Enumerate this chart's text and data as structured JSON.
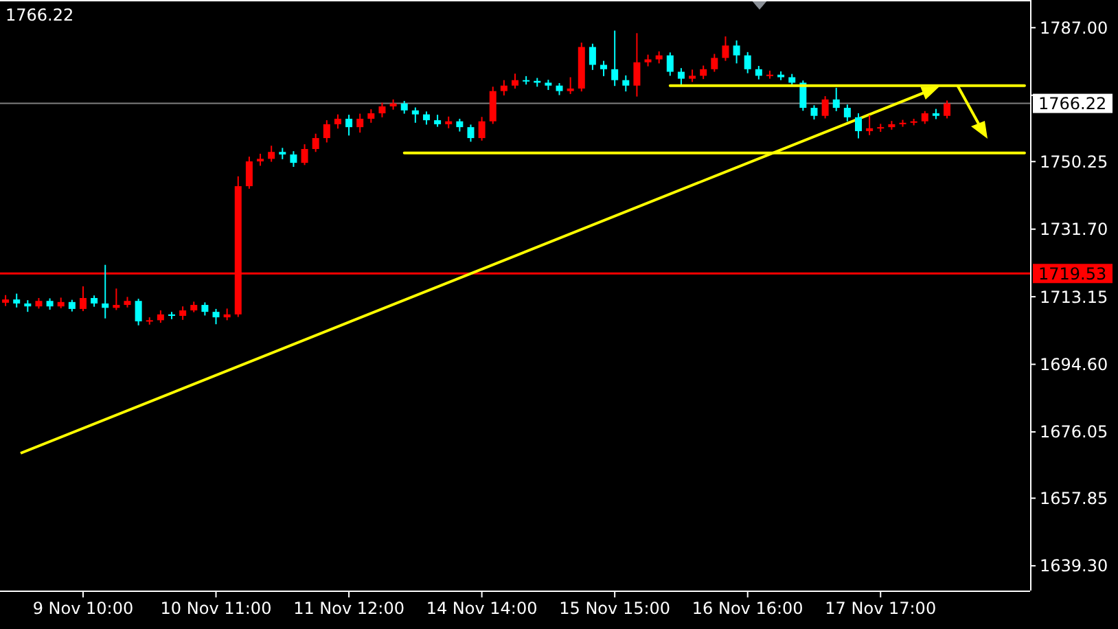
{
  "chart_data": {
    "type": "candlestick",
    "categories": [
      null,
      null,
      null,
      null,
      null,
      null,
      null,
      "9 Nov 10:00",
      null,
      null,
      null,
      null,
      null,
      null,
      null,
      null,
      null,
      null,
      null,
      "10 Nov 11:00",
      null,
      null,
      null,
      null,
      null,
      null,
      null,
      null,
      null,
      null,
      null,
      "11 Nov 12:00",
      null,
      null,
      null,
      null,
      null,
      null,
      null,
      null,
      null,
      null,
      null,
      "14 Nov 14:00",
      null,
      null,
      null,
      null,
      null,
      null,
      null,
      null,
      null,
      null,
      null,
      "15 Nov 15:00",
      null,
      null,
      null,
      null,
      null,
      null,
      null,
      null,
      null,
      null,
      null,
      "16 Nov 16:00",
      null,
      null,
      null,
      null,
      null,
      null,
      null,
      null,
      null,
      null,
      null,
      "17 Nov 17:00",
      null,
      null,
      null,
      null,
      null,
      null,
      null,
      null,
      null,
      null,
      null,
      null,
      null
    ],
    "ohlc": [
      [
        1711.5,
        1713.6,
        1710.6,
        1712.4
      ],
      [
        1712.4,
        1714.0,
        1710.2,
        1711.3
      ],
      [
        1711.3,
        1712.2,
        1709.0,
        1710.5
      ],
      [
        1710.5,
        1712.8,
        1709.9,
        1712.0
      ],
      [
        1712.0,
        1712.7,
        1709.6,
        1710.5
      ],
      [
        1710.5,
        1712.9,
        1710.0,
        1711.7
      ],
      [
        1711.7,
        1712.3,
        1709.1,
        1709.8
      ],
      [
        1709.8,
        1716.0,
        1709.2,
        1712.8
      ],
      [
        1712.8,
        1713.5,
        1710.4,
        1711.3
      ],
      [
        1711.3,
        1721.9,
        1707.2,
        1710.1
      ],
      [
        1710.1,
        1715.4,
        1709.5,
        1710.9
      ],
      [
        1710.9,
        1713.1,
        1710.2,
        1712.0
      ],
      [
        1712.0,
        1712.6,
        1705.3,
        1706.4
      ],
      [
        1706.4,
        1707.5,
        1705.5,
        1706.7
      ],
      [
        1706.7,
        1709.4,
        1706.0,
        1708.3
      ],
      [
        1708.3,
        1709.0,
        1707.0,
        1707.9
      ],
      [
        1707.9,
        1710.5,
        1706.8,
        1709.4
      ],
      [
        1709.4,
        1711.8,
        1708.9,
        1710.9
      ],
      [
        1710.9,
        1711.6,
        1708.0,
        1709.0
      ],
      [
        1709.0,
        1709.8,
        1705.6,
        1707.5
      ],
      [
        1707.5,
        1709.9,
        1706.7,
        1708.3
      ],
      [
        1708.3,
        1746.2,
        1707.6,
        1743.5
      ],
      [
        1743.5,
        1751.6,
        1742.8,
        1750.3
      ],
      [
        1750.3,
        1752.4,
        1749.1,
        1751.0
      ],
      [
        1751.0,
        1754.6,
        1750.2,
        1752.9
      ],
      [
        1752.9,
        1754.0,
        1750.9,
        1752.2
      ],
      [
        1752.2,
        1753.1,
        1748.8,
        1749.9
      ],
      [
        1749.9,
        1755.0,
        1749.3,
        1753.7
      ],
      [
        1753.7,
        1757.9,
        1752.9,
        1756.7
      ],
      [
        1756.7,
        1761.6,
        1755.5,
        1760.5
      ],
      [
        1760.5,
        1763.2,
        1759.3,
        1762.0
      ],
      [
        1762.0,
        1763.1,
        1757.4,
        1759.7
      ],
      [
        1759.7,
        1763.4,
        1758.2,
        1762.0
      ],
      [
        1762.0,
        1764.6,
        1760.9,
        1763.5
      ],
      [
        1763.5,
        1766.4,
        1762.4,
        1765.4
      ],
      [
        1765.4,
        1767.3,
        1764.5,
        1766.2
      ],
      [
        1766.2,
        1766.9,
        1763.4,
        1764.3
      ],
      [
        1764.3,
        1765.1,
        1760.9,
        1763.2
      ],
      [
        1763.2,
        1764.0,
        1760.4,
        1761.6
      ],
      [
        1761.6,
        1763.1,
        1759.8,
        1760.5
      ],
      [
        1760.5,
        1762.6,
        1759.4,
        1761.3
      ],
      [
        1761.3,
        1762.0,
        1758.5,
        1759.7
      ],
      [
        1759.7,
        1760.4,
        1755.7,
        1756.7
      ],
      [
        1756.7,
        1762.5,
        1756.0,
        1761.3
      ],
      [
        1761.3,
        1770.8,
        1760.6,
        1769.6
      ],
      [
        1769.6,
        1772.6,
        1768.4,
        1771.1
      ],
      [
        1771.1,
        1774.4,
        1770.3,
        1772.6
      ],
      [
        1772.6,
        1773.7,
        1771.4,
        1772.4
      ],
      [
        1772.4,
        1773.2,
        1770.8,
        1771.9
      ],
      [
        1771.9,
        1772.7,
        1769.9,
        1771.1
      ],
      [
        1771.1,
        1771.8,
        1768.5,
        1769.6
      ],
      [
        1769.6,
        1773.4,
        1768.8,
        1770.3
      ],
      [
        1770.3,
        1782.9,
        1769.5,
        1781.7
      ],
      [
        1781.7,
        1782.6,
        1775.4,
        1776.8
      ],
      [
        1776.8,
        1777.9,
        1773.7,
        1775.6
      ],
      [
        1775.6,
        1786.2,
        1771.0,
        1772.6
      ],
      [
        1772.6,
        1773.9,
        1769.5,
        1771.1
      ],
      [
        1771.1,
        1785.5,
        1768.1,
        1777.5
      ],
      [
        1777.5,
        1779.6,
        1776.4,
        1778.3
      ],
      [
        1778.3,
        1780.5,
        1777.2,
        1779.4
      ],
      [
        1779.4,
        1780.2,
        1773.8,
        1774.9
      ],
      [
        1774.9,
        1775.9,
        1771.3,
        1773.0
      ],
      [
        1773.0,
        1775.5,
        1772.1,
        1773.8
      ],
      [
        1773.8,
        1776.6,
        1772.9,
        1775.6
      ],
      [
        1775.6,
        1779.8,
        1774.9,
        1778.7
      ],
      [
        1778.7,
        1784.6,
        1777.9,
        1782.1
      ],
      [
        1782.1,
        1783.5,
        1777.2,
        1779.4
      ],
      [
        1779.4,
        1780.3,
        1774.5,
        1775.6
      ],
      [
        1775.6,
        1776.5,
        1772.8,
        1773.8
      ],
      [
        1773.8,
        1775.2,
        1773.0,
        1774.1
      ],
      [
        1774.1,
        1775.0,
        1772.6,
        1773.4
      ],
      [
        1773.4,
        1774.3,
        1770.9,
        1771.9
      ],
      [
        1771.9,
        1772.5,
        1764.2,
        1765.0
      ],
      [
        1765.0,
        1765.7,
        1761.8,
        1762.8
      ],
      [
        1762.8,
        1768.2,
        1762.1,
        1767.3
      ],
      [
        1767.3,
        1770.5,
        1764.1,
        1765.0
      ],
      [
        1765.0,
        1765.9,
        1761.3,
        1762.4
      ],
      [
        1762.4,
        1763.5,
        1756.6,
        1758.6
      ],
      [
        1758.6,
        1763.0,
        1757.5,
        1759.4
      ],
      [
        1759.4,
        1760.6,
        1758.4,
        1759.7
      ],
      [
        1759.7,
        1761.4,
        1759.0,
        1760.5
      ],
      [
        1760.5,
        1761.7,
        1759.8,
        1760.9
      ],
      [
        1760.9,
        1762.0,
        1760.2,
        1761.3
      ],
      [
        1761.3,
        1764.1,
        1760.6,
        1763.5
      ],
      [
        1763.5,
        1764.7,
        1761.9,
        1762.8
      ],
      [
        1762.8,
        1767.0,
        1762.1,
        1766.2
      ],
      null,
      null,
      null,
      null,
      null,
      null,
      null
    ],
    "colors": [
      "#ff0000",
      "#00ffff",
      "#00ffff",
      "#ff0000",
      "#00ffff",
      "#ff0000",
      "#00ffff",
      "#ff0000",
      "#00ffff",
      "#00ffff",
      "#ff0000",
      "#ff0000",
      "#00ffff",
      "#ff0000",
      "#ff0000",
      "#00ffff",
      "#ff0000",
      "#ff0000",
      "#00ffff",
      "#00ffff",
      "#ff0000",
      "#ff0000",
      "#ff0000",
      "#ff0000",
      "#ff0000",
      "#00ffff",
      "#00ffff",
      "#ff0000",
      "#ff0000",
      "#ff0000",
      "#ff0000",
      "#00ffff",
      "#ff0000",
      "#ff0000",
      "#ff0000",
      "#ff0000",
      "#00ffff",
      "#00ffff",
      "#00ffff",
      "#00ffff",
      "#ff0000",
      "#00ffff",
      "#00ffff",
      "#ff0000",
      "#ff0000",
      "#ff0000",
      "#ff0000",
      "#00ffff",
      "#00ffff",
      "#00ffff",
      "#00ffff",
      "#ff0000",
      "#ff0000",
      "#00ffff",
      "#00ffff",
      "#00ffff",
      "#00ffff",
      "#ff0000",
      "#ff0000",
      "#ff0000",
      "#00ffff",
      "#00ffff",
      "#ff0000",
      "#ff0000",
      "#ff0000",
      "#ff0000",
      "#00ffff",
      "#00ffff",
      "#00ffff",
      "#ff0000",
      "#00ffff",
      "#00ffff",
      "#00ffff",
      "#00ffff",
      "#ff0000",
      "#00ffff",
      "#00ffff",
      "#00ffff",
      "#ff0000",
      "#ff0000",
      "#ff0000",
      "#ff0000",
      "#ff0000",
      "#ff0000",
      "#00ffff",
      "#ff0000",
      null,
      null,
      null,
      null,
      null,
      null,
      null
    ],
    "series": [
      {
        "type": "line",
        "color": "#ffff00",
        "values": [
          null,
          null,
          null,
          null,
          null,
          null,
          null,
          null,
          null,
          null,
          null,
          null,
          null,
          null,
          null,
          null,
          null,
          null,
          null,
          null,
          null,
          null,
          null,
          null,
          null,
          null,
          null,
          null,
          null,
          null,
          null,
          null,
          null,
          null,
          null,
          null,
          null,
          null,
          null,
          null,
          null,
          null,
          null,
          null,
          null,
          null,
          null,
          null,
          null,
          null,
          null,
          null,
          null,
          null,
          null,
          null,
          null,
          null,
          null,
          null,
          1771.1,
          null,
          null,
          null,
          null,
          null,
          null,
          null,
          null,
          null,
          null,
          null,
          null,
          null,
          null,
          null,
          null,
          null,
          null,
          null,
          null,
          null,
          null,
          null,
          null,
          null,
          null,
          null,
          null,
          null,
          null,
          null,
          1771.1
        ]
      },
      {
        "type": "line",
        "color": "#ffff00",
        "values": [
          null,
          null,
          null,
          null,
          null,
          null,
          null,
          null,
          null,
          null,
          null,
          null,
          null,
          null,
          null,
          null,
          null,
          null,
          null,
          null,
          null,
          null,
          null,
          null,
          null,
          null,
          null,
          null,
          null,
          null,
          null,
          null,
          null,
          null,
          null,
          null,
          1752.6,
          null,
          null,
          null,
          null,
          null,
          null,
          null,
          null,
          null,
          null,
          null,
          null,
          null,
          null,
          null,
          null,
          null,
          null,
          null,
          null,
          null,
          null,
          null,
          null,
          null,
          null,
          null,
          null,
          null,
          null,
          null,
          null,
          null,
          null,
          null,
          null,
          null,
          null,
          null,
          null,
          null,
          null,
          null,
          null,
          null,
          null,
          null,
          null,
          null,
          null,
          null,
          null,
          null,
          null,
          null,
          1752.6
        ]
      }
    ],
    "ylim": [
      1632.5,
      1794.6
    ],
    "yticks": [
      {
        "value": 1787,
        "label": "1787.00"
      },
      {
        "value": 1768.45,
        "label": null
      },
      {
        "value": 1750.25,
        "label": "1750.25"
      },
      {
        "value": 1731.7,
        "label": "1731.70"
      },
      {
        "value": 1713.15,
        "label": "1713.15"
      },
      {
        "value": 1694.6,
        "label": "1694.60"
      },
      {
        "value": 1676.05,
        "label": "1676.05"
      },
      {
        "value": 1657.85,
        "label": "1657.85"
      },
      {
        "value": 1639.3,
        "label": "1639.30"
      }
    ],
    "ref_lines": [
      {
        "axis": "y",
        "value": 1719.53,
        "label": "1719.53",
        "color": "#ff0000"
      },
      {
        "axis": "y",
        "value": 1766.22,
        "label": "1766.22",
        "color": "#808080"
      }
    ],
    "annotations": [
      "1766.22"
    ]
  }
}
